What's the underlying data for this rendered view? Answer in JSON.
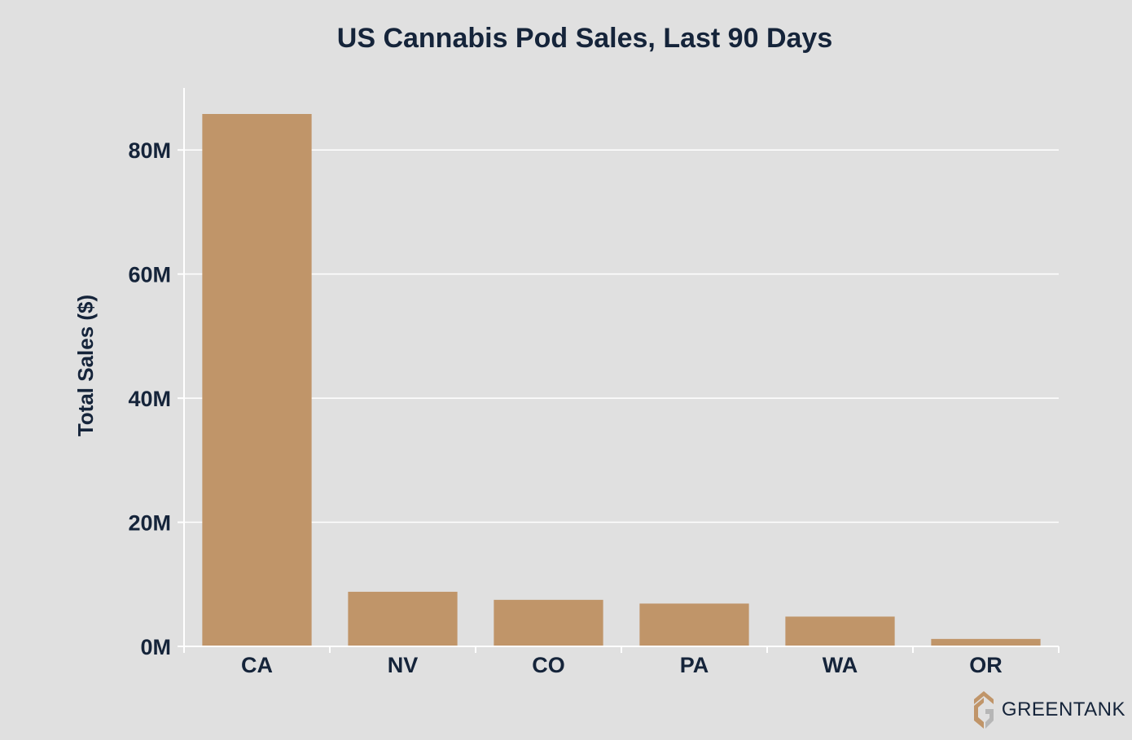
{
  "chart_data": {
    "type": "bar",
    "title": "US Cannabis Pod Sales, Last 90 Days",
    "xlabel": "",
    "ylabel": "Total Sales ($)",
    "categories": [
      "CA",
      "NV",
      "CO",
      "PA",
      "WA",
      "OR"
    ],
    "values": [
      85800000,
      8800000,
      7500000,
      6900000,
      4800000,
      1200000
    ],
    "ylim": [
      0,
      90000000
    ],
    "yticks": [
      0,
      20000000,
      40000000,
      60000000,
      80000000
    ],
    "ytick_labels": [
      "0M",
      "20M",
      "40M",
      "60M",
      "80M"
    ],
    "grid": true,
    "bar_color": "#c09569",
    "grid_color": "#ffffff",
    "text_color": "#15243a",
    "background": "#e0e0e0"
  },
  "logo": {
    "text": "GREENTANK",
    "icon": "greentank-logo-icon"
  }
}
